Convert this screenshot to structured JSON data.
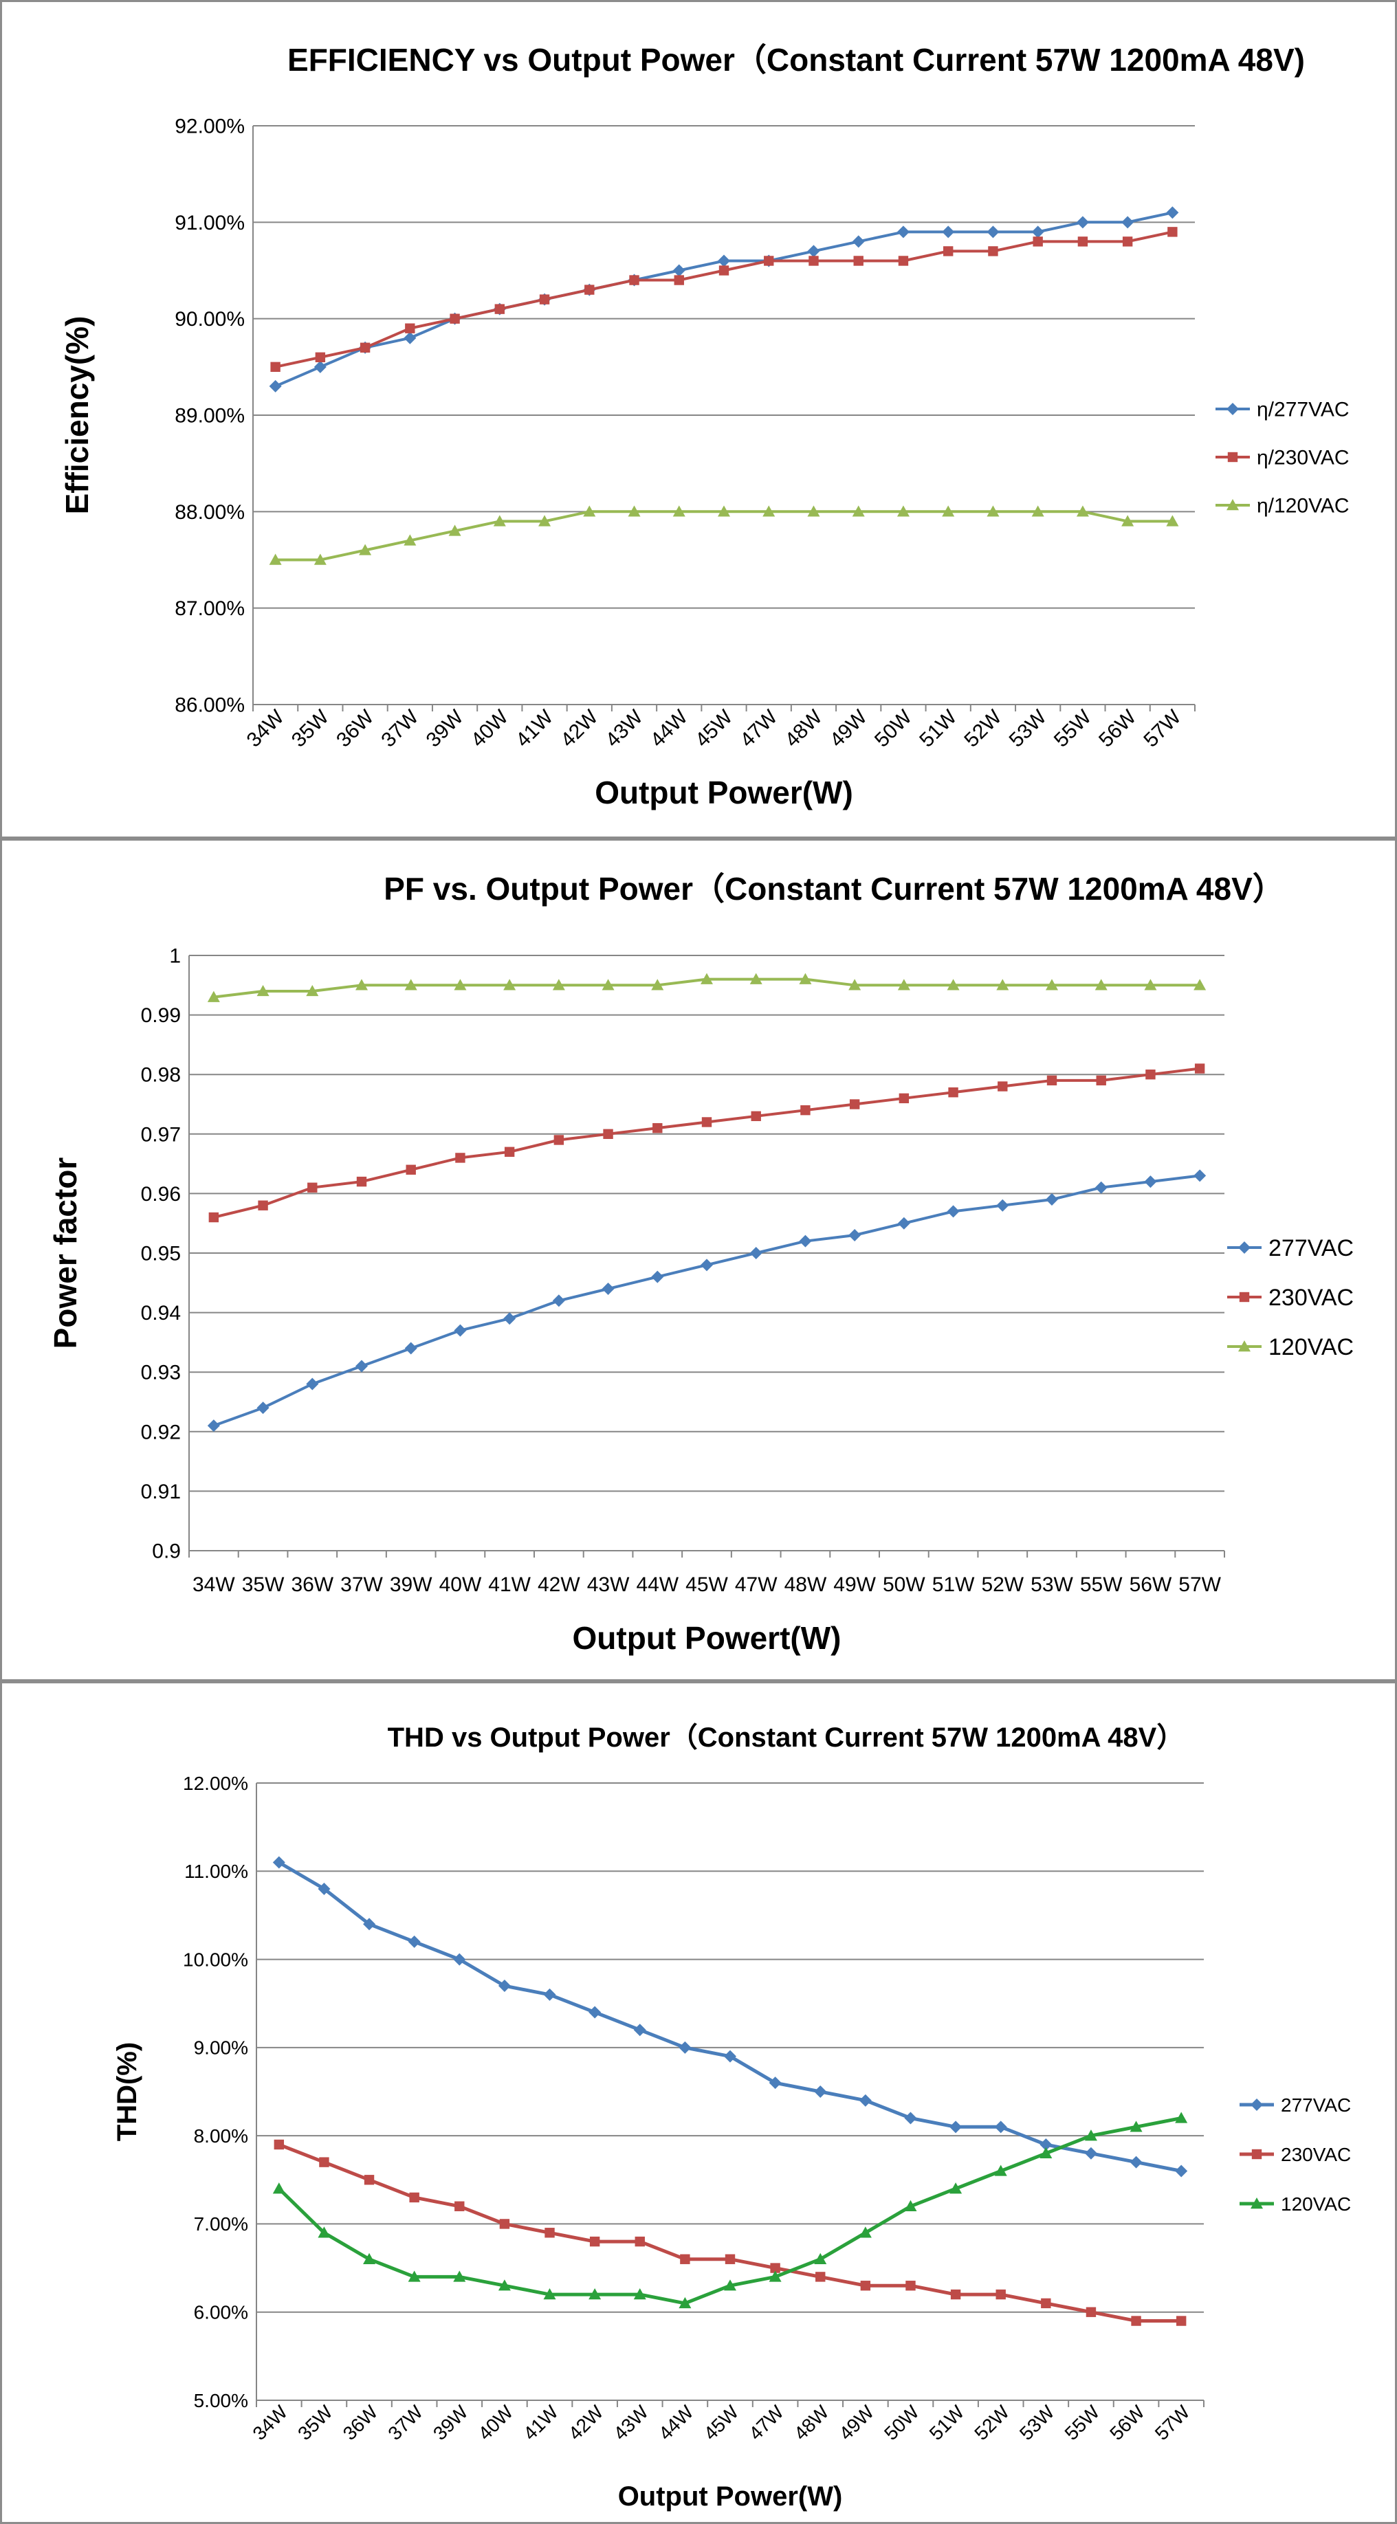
{
  "chart_data": [
    {
      "type": "line",
      "title": "EFFICIENCY vs Output Power（Constant Current 57W 1200mA 48V)",
      "xlabel": "Output Power(W)",
      "ylabel": "Efficiency(%)",
      "categories": [
        "34W",
        "35W",
        "36W",
        "37W",
        "39W",
        "40W",
        "41W",
        "42W",
        "43W",
        "44W",
        "45W",
        "47W",
        "48W",
        "49W",
        "50W",
        "51W",
        "52W",
        "53W",
        "55W",
        "56W",
        "57W"
      ],
      "ylim": [
        86,
        92
      ],
      "yticks": [
        86,
        87,
        88,
        89,
        90,
        91,
        92
      ],
      "ytick_labels": [
        "86.00%",
        "87.00%",
        "88.00%",
        "89.00%",
        "90.00%",
        "91.00%",
        "92.00%"
      ],
      "grid": true,
      "legend": "right",
      "series": [
        {
          "name": "η/277VAC",
          "color": "#4a7ebb",
          "marker": "diamond",
          "values": [
            89.3,
            89.5,
            89.7,
            89.8,
            90.0,
            90.1,
            90.2,
            90.3,
            90.4,
            90.5,
            90.6,
            90.6,
            90.7,
            90.8,
            90.9,
            90.9,
            90.9,
            90.9,
            91.0,
            91.0,
            91.1
          ]
        },
        {
          "name": "η/230VAC",
          "color": "#be4b48",
          "marker": "square",
          "values": [
            89.5,
            89.6,
            89.7,
            89.9,
            90.0,
            90.1,
            90.2,
            90.3,
            90.4,
            90.4,
            90.5,
            90.6,
            90.6,
            90.6,
            90.6,
            90.7,
            90.7,
            90.8,
            90.8,
            90.8,
            90.9
          ]
        },
        {
          "name": "η/120VAC",
          "color": "#98b954",
          "marker": "triangle",
          "values": [
            87.5,
            87.5,
            87.6,
            87.7,
            87.8,
            87.9,
            87.9,
            88.0,
            88.0,
            88.0,
            88.0,
            88.0,
            88.0,
            88.0,
            88.0,
            88.0,
            88.0,
            88.0,
            88.0,
            87.9,
            87.9
          ]
        }
      ]
    },
    {
      "type": "line",
      "title": "PF vs. Output Power（Constant Current 57W 1200mA 48V）",
      "xlabel": "Output Powert(W)",
      "ylabel": "Power factor",
      "categories": [
        "34W",
        "35W",
        "36W",
        "37W",
        "39W",
        "40W",
        "41W",
        "42W",
        "43W",
        "44W",
        "45W",
        "47W",
        "48W",
        "49W",
        "50W",
        "51W",
        "52W",
        "53W",
        "55W",
        "56W",
        "57W"
      ],
      "ylim": [
        0.9,
        1.0
      ],
      "yticks": [
        0.9,
        0.91,
        0.92,
        0.93,
        0.94,
        0.95,
        0.96,
        0.97,
        0.98,
        0.99,
        1.0
      ],
      "ytick_labels": [
        "0.9",
        "0.91",
        "0.92",
        "0.93",
        "0.94",
        "0.95",
        "0.96",
        "0.97",
        "0.98",
        "0.99",
        "1"
      ],
      "grid": true,
      "legend": "right",
      "series": [
        {
          "name": "277VAC",
          "color": "#4a7ebb",
          "marker": "diamond",
          "values": [
            0.921,
            0.924,
            0.928,
            0.931,
            0.934,
            0.937,
            0.939,
            0.942,
            0.944,
            0.946,
            0.948,
            0.95,
            0.952,
            0.953,
            0.955,
            0.957,
            0.958,
            0.959,
            0.961,
            0.962,
            0.963
          ]
        },
        {
          "name": "230VAC",
          "color": "#be4b48",
          "marker": "square",
          "values": [
            0.956,
            0.958,
            0.961,
            0.962,
            0.964,
            0.966,
            0.967,
            0.969,
            0.97,
            0.971,
            0.972,
            0.973,
            0.974,
            0.975,
            0.976,
            0.977,
            0.978,
            0.979,
            0.979,
            0.98,
            0.981
          ]
        },
        {
          "name": "120VAC",
          "color": "#98b954",
          "marker": "triangle",
          "values": [
            0.993,
            0.994,
            0.994,
            0.995,
            0.995,
            0.995,
            0.995,
            0.995,
            0.995,
            0.995,
            0.996,
            0.996,
            0.996,
            0.995,
            0.995,
            0.995,
            0.995,
            0.995,
            0.995,
            0.995,
            0.995
          ]
        }
      ]
    },
    {
      "type": "line",
      "title": "THD vs Output Power（Constant Current 57W  1200mA 48V）",
      "xlabel": "Output Power(W)",
      "ylabel": "THD(%)",
      "categories": [
        "34W",
        "35W",
        "36W",
        "37W",
        "39W",
        "40W",
        "41W",
        "42W",
        "43W",
        "44W",
        "45W",
        "47W",
        "48W",
        "49W",
        "50W",
        "51W",
        "52W",
        "53W",
        "55W",
        "56W",
        "57W"
      ],
      "ylim": [
        5,
        12
      ],
      "yticks": [
        5,
        6,
        7,
        8,
        9,
        10,
        11,
        12
      ],
      "ytick_labels": [
        "5.00%",
        "6.00%",
        "7.00%",
        "8.00%",
        "9.00%",
        "10.00%",
        "11.00%",
        "12.00%"
      ],
      "grid": true,
      "legend": "right",
      "series": [
        {
          "name": "277VAC",
          "color": "#4a7ebb",
          "marker": "diamond",
          "values": [
            11.1,
            10.8,
            10.4,
            10.2,
            10.0,
            9.7,
            9.6,
            9.4,
            9.2,
            9.0,
            8.9,
            8.6,
            8.5,
            8.4,
            8.2,
            8.1,
            8.1,
            7.9,
            7.8,
            7.7,
            7.6
          ]
        },
        {
          "name": "230VAC",
          "color": "#be4b48",
          "marker": "square",
          "values": [
            7.9,
            7.7,
            7.5,
            7.3,
            7.2,
            7.0,
            6.9,
            6.8,
            6.8,
            6.6,
            6.6,
            6.5,
            6.4,
            6.3,
            6.3,
            6.2,
            6.2,
            6.1,
            6.0,
            5.9,
            5.9
          ]
        },
        {
          "name": "120VAC",
          "color": "#2aa13b",
          "marker": "triangle",
          "values": [
            7.4,
            6.9,
            6.6,
            6.4,
            6.4,
            6.3,
            6.2,
            6.2,
            6.2,
            6.1,
            6.3,
            6.4,
            6.6,
            6.9,
            7.2,
            7.4,
            7.6,
            7.8,
            8.0,
            8.1,
            8.2
          ]
        }
      ]
    }
  ]
}
